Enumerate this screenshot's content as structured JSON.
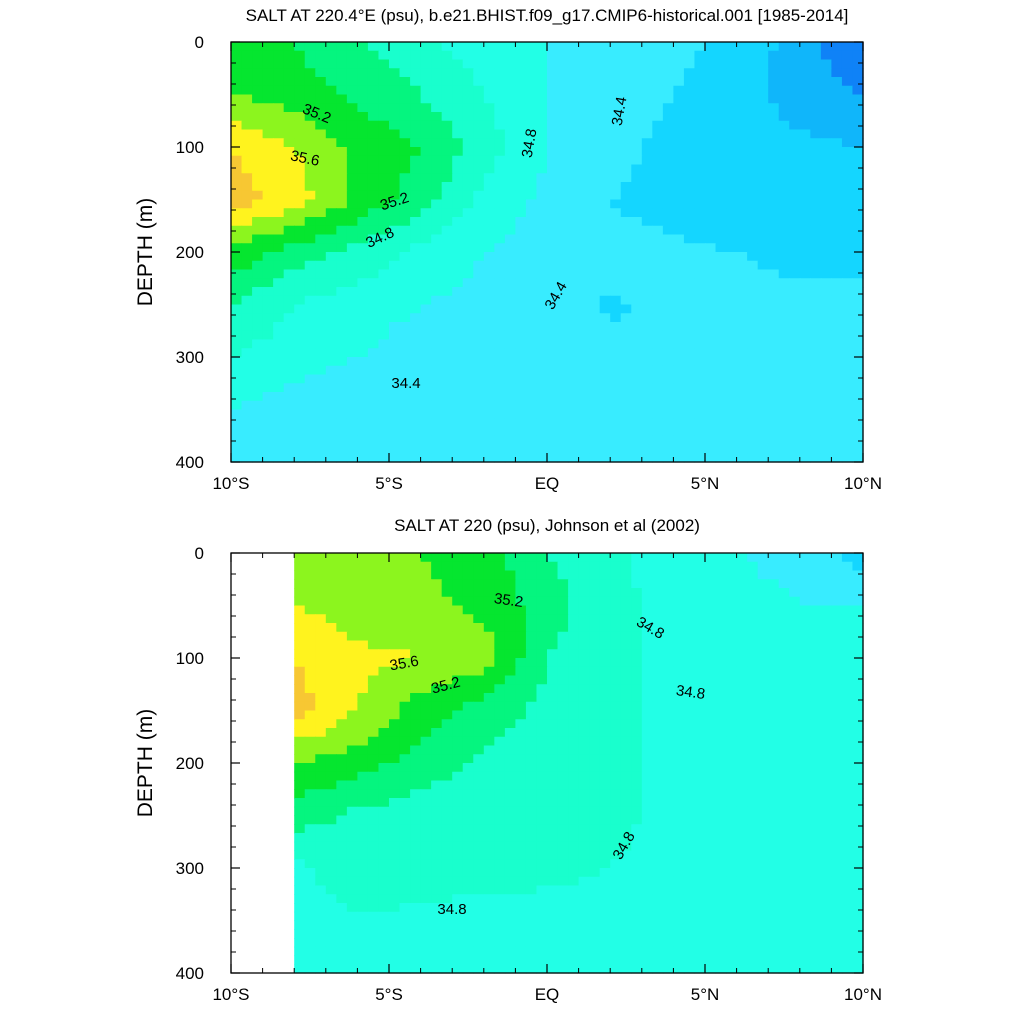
{
  "colors": {
    "levels": [
      {
        "upto": 33.8,
        "color": "#0a3ff0"
      },
      {
        "upto": 34.0,
        "color": "#0f82f7"
      },
      {
        "upto": 34.2,
        "color": "#10b6fa"
      },
      {
        "upto": 34.4,
        "color": "#14d6ff"
      },
      {
        "upto": 34.6,
        "color": "#38ecff"
      },
      {
        "upto": 34.8,
        "color": "#22ffe6"
      },
      {
        "upto": 35.0,
        "color": "#19ffcd"
      },
      {
        "upto": 35.2,
        "color": "#05f57f"
      },
      {
        "upto": 35.4,
        "color": "#05e62f"
      },
      {
        "upto": 35.6,
        "color": "#8cf51e"
      },
      {
        "upto": 35.8,
        "color": "#fff31e"
      },
      {
        "upto": 99.0,
        "color": "#f7c733"
      }
    ]
  },
  "chart_data": [
    {
      "type": "contour",
      "title": "SALT AT 220.4°E (psu), b.e21.BHIST.f09_g17.CMIP6-historical.001 [1985-2014]",
      "xlabel": "",
      "ylabel": "DEPTH (m)",
      "xlim": [
        -10,
        10
      ],
      "ylim": [
        400,
        0
      ],
      "x_tick_values": [
        -10,
        -5,
        0,
        5,
        10
      ],
      "x_tick_labels": [
        "10°S",
        "5°S",
        "EQ",
        "5°N",
        "10°N"
      ],
      "y_tick_values": [
        0,
        100,
        200,
        300,
        400
      ],
      "y_tick_labels": [
        "0",
        "100",
        "200",
        "300",
        "400"
      ],
      "x": [
        -10,
        -8,
        -6,
        -4,
        -2,
        0,
        2,
        4,
        6,
        8,
        10
      ],
      "depth": [
        0,
        50,
        100,
        150,
        200,
        250,
        300,
        350,
        400
      ],
      "salinity": [
        [
          35.3,
          35.2,
          35.0,
          34.85,
          34.7,
          34.6,
          34.55,
          34.45,
          34.35,
          34.1,
          33.8
        ],
        [
          35.4,
          35.3,
          35.15,
          35.0,
          34.8,
          34.6,
          34.5,
          34.4,
          34.3,
          34.1,
          34.0
        ],
        [
          35.8,
          35.6,
          35.35,
          35.2,
          34.9,
          34.6,
          34.45,
          34.35,
          34.3,
          34.25,
          34.2
        ],
        [
          35.9,
          35.7,
          35.35,
          35.1,
          34.75,
          34.55,
          34.4,
          34.36,
          34.3,
          34.25,
          34.3
        ],
        [
          35.35,
          35.1,
          34.95,
          34.75,
          34.6,
          34.5,
          34.43,
          34.42,
          34.4,
          34.38,
          34.38
        ],
        [
          35.0,
          34.8,
          34.7,
          34.6,
          34.55,
          34.46,
          34.39,
          34.42,
          34.42,
          34.42,
          34.42
        ],
        [
          34.8,
          34.7,
          34.6,
          34.5,
          34.45,
          34.42,
          34.42,
          34.42,
          34.42,
          34.42,
          34.42
        ],
        [
          34.6,
          34.5,
          34.45,
          34.42,
          34.42,
          34.42,
          34.42,
          34.42,
          34.42,
          34.42,
          34.42
        ],
        [
          34.45,
          34.43,
          34.42,
          34.42,
          34.42,
          34.42,
          34.42,
          34.42,
          34.42,
          34.42,
          34.42
        ]
      ],
      "contour_labels": [
        "35.2",
        "35.6",
        "35.2",
        "34.8",
        "34.8",
        "34.4",
        "34.4",
        "34.4"
      ]
    },
    {
      "type": "contour",
      "title": "SALT AT 220 (psu), Johnson et al (2002)",
      "xlabel": "",
      "ylabel": "DEPTH (m)",
      "xlim": [
        -10,
        10
      ],
      "ylim": [
        400,
        0
      ],
      "data_xmin": -8,
      "x_tick_values": [
        -10,
        -5,
        0,
        5,
        10
      ],
      "x_tick_labels": [
        "10°S",
        "5°S",
        "EQ",
        "5°N",
        "10°N"
      ],
      "y_tick_values": [
        0,
        100,
        200,
        300,
        400
      ],
      "y_tick_labels": [
        "0",
        "100",
        "200",
        "300",
        "400"
      ],
      "x": [
        -8,
        -6,
        -4,
        -2,
        0,
        2,
        4,
        6,
        8,
        10
      ],
      "depth": [
        0,
        50,
        100,
        150,
        200,
        250,
        300,
        350,
        400
      ],
      "salinity": [
        [
          35.5,
          35.45,
          35.4,
          35.3,
          35.0,
          34.85,
          34.7,
          34.6,
          34.5,
          34.3
        ],
        [
          35.6,
          35.5,
          35.45,
          35.35,
          35.1,
          34.85,
          34.75,
          34.7,
          34.6,
          34.6
        ],
        [
          35.8,
          35.65,
          35.6,
          35.5,
          35.0,
          34.85,
          34.75,
          34.7,
          34.7,
          34.7
        ],
        [
          35.9,
          35.6,
          35.3,
          35.1,
          34.95,
          34.85,
          34.75,
          34.72,
          34.72,
          34.72
        ],
        [
          35.4,
          35.3,
          35.1,
          34.95,
          34.9,
          34.85,
          34.75,
          34.72,
          34.72,
          34.72
        ],
        [
          35.1,
          34.95,
          34.9,
          34.88,
          34.86,
          34.84,
          34.75,
          34.72,
          34.72,
          34.72
        ],
        [
          34.75,
          34.95,
          34.9,
          34.88,
          34.85,
          34.8,
          34.75,
          34.72,
          34.72,
          34.72
        ],
        [
          34.7,
          34.78,
          34.75,
          34.72,
          34.72,
          34.72,
          34.72,
          34.72,
          34.72,
          34.72
        ],
        [
          34.7,
          34.72,
          34.72,
          34.72,
          34.72,
          34.72,
          34.72,
          34.72,
          34.72,
          34.72
        ]
      ],
      "contour_labels": [
        "35.2",
        "35.6",
        "35.2",
        "34.8",
        "34.8",
        "34.8",
        "34.8"
      ]
    }
  ]
}
